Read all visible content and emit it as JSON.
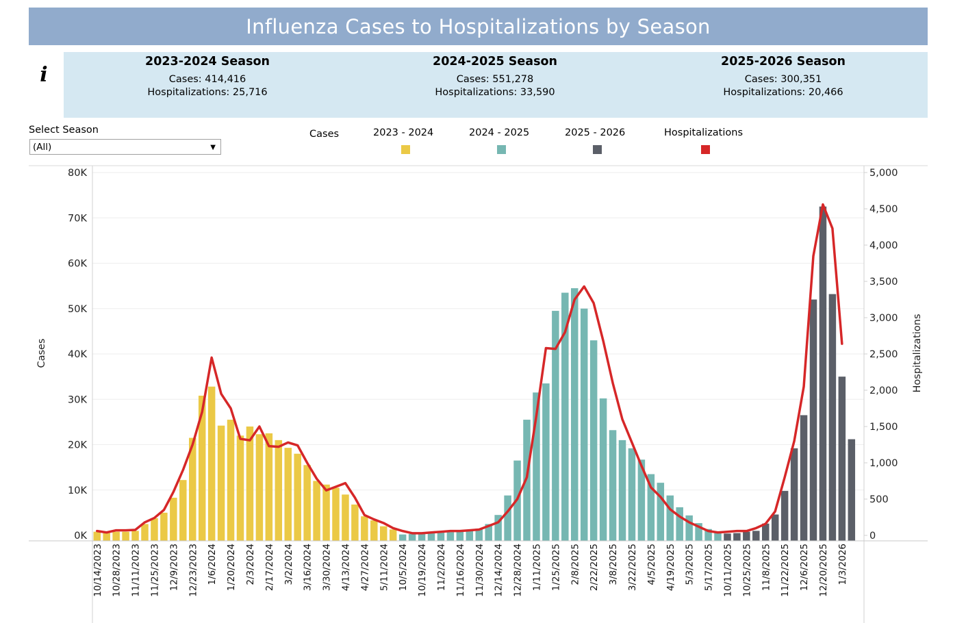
{
  "header": {
    "title": "Influenza Cases to Hospitalizations by Season",
    "info_icon": "info-icon"
  },
  "summary": [
    {
      "season": "2023-2024 Season",
      "cases": "Cases: 414,416",
      "hosp": "Hospitalizations: 25,716"
    },
    {
      "season": "2024-2025 Season",
      "cases": "Cases: 551,278",
      "hosp": "Hospitalizations: 33,590"
    },
    {
      "season": "2025-2026 Season",
      "cases": "Cases:  300,351",
      "hosp": "Hospitalizations: 20,466"
    }
  ],
  "filter": {
    "label": "Select Season",
    "value": "(All)"
  },
  "legend": {
    "title": "Cases",
    "items": [
      {
        "label": "2023 - 2024",
        "color": "#ebc946"
      },
      {
        "label": "2024 - 2025",
        "color": "#76b7b2"
      },
      {
        "label": "2025 - 2026",
        "color": "#5b5f68"
      },
      {
        "label": "Hospitalizations",
        "color": "#d62728"
      }
    ]
  },
  "chart_data": {
    "type": "bar+line",
    "title": "Influenza Cases to Hospitalizations by Season",
    "ylabel": "Cases",
    "y2label": "Hospitalizations",
    "ylim": [
      0,
      80000
    ],
    "y2lim": [
      0,
      5000
    ],
    "yticks": [
      "0K",
      "10K",
      "20K",
      "30K",
      "40K",
      "50K",
      "60K",
      "70K",
      "80K"
    ],
    "y2ticks": [
      "0",
      "500",
      "1,000",
      "1,500",
      "2,000",
      "2,500",
      "3,000",
      "3,500",
      "4,000",
      "4,500",
      "5,000"
    ],
    "grid": true,
    "legend_position": "top",
    "x_labels_shown": [
      "10/14/2023",
      "10/28/2023",
      "11/11/2023",
      "11/25/2023",
      "12/9/2023",
      "12/23/2023",
      "1/6/2024",
      "1/20/2024",
      "2/3/2024",
      "2/17/2024",
      "3/2/2024",
      "3/16/2024",
      "3/30/2024",
      "4/13/2024",
      "4/27/2024",
      "5/11/2024",
      "10/5/2024",
      "10/19/2024",
      "11/2/2024",
      "11/16/2024",
      "11/30/2024",
      "12/14/2024",
      "12/28/2024",
      "1/11/2025",
      "1/25/2025",
      "2/8/2025",
      "2/22/2025",
      "3/8/2025",
      "3/22/2025",
      "4/5/2025",
      "4/19/2025",
      "5/3/2025",
      "5/17/2025",
      "10/11/2025",
      "10/25/2025",
      "11/8/2025",
      "11/22/2025",
      "12/6/2025",
      "12/20/2025",
      "1/3/2026"
    ],
    "series": [
      {
        "name": "2023 - 2024",
        "type": "bar",
        "color": "#ebc946",
        "values": [
          800,
          500,
          800,
          800,
          1000,
          2500,
          3800,
          5000,
          8300,
          12200,
          21500,
          30800,
          32800,
          24200,
          25500,
          22000,
          24000,
          22300,
          22500,
          21000,
          19300,
          18000,
          15500,
          12000,
          11200,
          10500,
          9000,
          6800,
          4200,
          3300,
          2000,
          1300
        ]
      },
      {
        "name": "2024 - 2025",
        "type": "bar",
        "color": "#76b7b2",
        "values": [
          200,
          300,
          400,
          500,
          600,
          700,
          900,
          1000,
          1500,
          2500,
          4500,
          8800,
          16500,
          25500,
          31500,
          33500,
          49500,
          53500,
          54500,
          50000,
          43000,
          30200,
          23200,
          21000,
          19200,
          16700,
          13500,
          11600,
          8800,
          6200,
          4400,
          2700,
          1400,
          900
        ]
      },
      {
        "name": "2025 - 2026",
        "type": "bar",
        "color": "#5b5f68",
        "values": [
          400,
          500,
          800,
          1000,
          2600,
          4600,
          9800,
          19200,
          26500,
          52000,
          72500,
          53200,
          35000,
          21200
        ]
      },
      {
        "name": "Hospitalizations",
        "type": "line",
        "color": "#d62728",
        "values": [
          60,
          40,
          70,
          70,
          75,
          180,
          240,
          350,
          600,
          900,
          1250,
          1700,
          2450,
          1950,
          1750,
          1330,
          1310,
          1500,
          1230,
          1220,
          1280,
          1240,
          1000,
          780,
          620,
          670,
          720,
          520,
          280,
          220,
          170,
          100,
          60,
          30,
          30,
          40,
          50,
          60,
          60,
          70,
          80,
          130,
          180,
          330,
          500,
          800,
          1650,
          2580,
          2570,
          2800,
          3250,
          3430,
          3200,
          2680,
          2100,
          1600,
          1280,
          960,
          660,
          530,
          360,
          260,
          180,
          120,
          60,
          40,
          50,
          60,
          60,
          100,
          160,
          330,
          800,
          1300,
          2050,
          3850,
          4560,
          4230,
          2640
        ]
      }
    ]
  }
}
